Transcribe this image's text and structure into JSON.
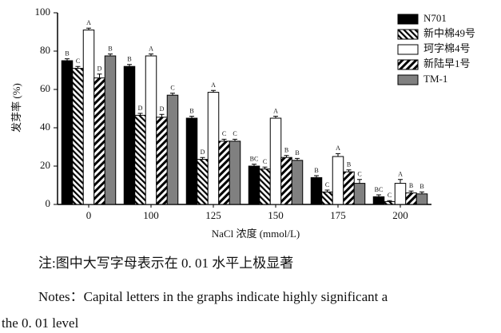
{
  "chart_data": {
    "type": "bar",
    "y_label": "发芽率 (%)",
    "x_label": "NaCl 浓度 (mmol/L)",
    "categories": [
      "0",
      "100",
      "125",
      "150",
      "175",
      "200"
    ],
    "ylim": [
      0,
      100
    ],
    "yticks": [
      0,
      20,
      40,
      60,
      80,
      100
    ],
    "legend": "top-right",
    "series": [
      {
        "name": "N701",
        "color": "#000000",
        "pattern": "solid",
        "values": [
          75,
          72,
          45,
          20,
          14,
          4
        ],
        "errors": [
          1,
          1,
          1,
          1,
          1,
          1
        ],
        "letters": [
          "B",
          "B",
          "B",
          "BC",
          "B",
          "BC"
        ]
      },
      {
        "name": "新中棉49号",
        "color": "#000000",
        "pattern": "back-hatch",
        "values": [
          71,
          46.5,
          23.5,
          18.5,
          6.5,
          1.5
        ],
        "errors": [
          1,
          1,
          1,
          1,
          1,
          0.5
        ],
        "letters": [
          "C",
          "D",
          "D",
          "C",
          "C",
          "C"
        ]
      },
      {
        "name": "珂字棉4号",
        "color": "#ffffff",
        "pattern": "solid",
        "values": [
          91,
          77.5,
          58.5,
          45,
          25,
          11
        ],
        "errors": [
          1,
          1,
          1,
          1,
          1.5,
          2
        ],
        "letters": [
          "A",
          "A",
          "A",
          "A",
          "A",
          "A"
        ]
      },
      {
        "name": "新陆早1号",
        "color": "#000000",
        "pattern": "forward-hatch",
        "values": [
          66,
          45.5,
          33,
          24.5,
          17,
          6
        ],
        "errors": [
          2,
          1.5,
          1,
          1,
          1,
          1
        ],
        "letters": [
          "D",
          "D",
          "C",
          "B",
          "B",
          "B"
        ]
      },
      {
        "name": "TM-1",
        "color": "#808080",
        "pattern": "solid",
        "values": [
          77.5,
          57,
          33,
          23,
          11,
          5.5
        ],
        "errors": [
          1,
          1,
          1,
          1,
          2,
          1
        ],
        "letters": [
          "B",
          "C",
          "C",
          "B",
          "C",
          "B"
        ]
      }
    ]
  },
  "notes": {
    "zh": "注:图中大写字母表示在 0. 01 水平上极显著",
    "en_line1": "Notes：Capital letters in the graphs indicate highly significant a",
    "en_line2": "the 0. 01 level"
  }
}
